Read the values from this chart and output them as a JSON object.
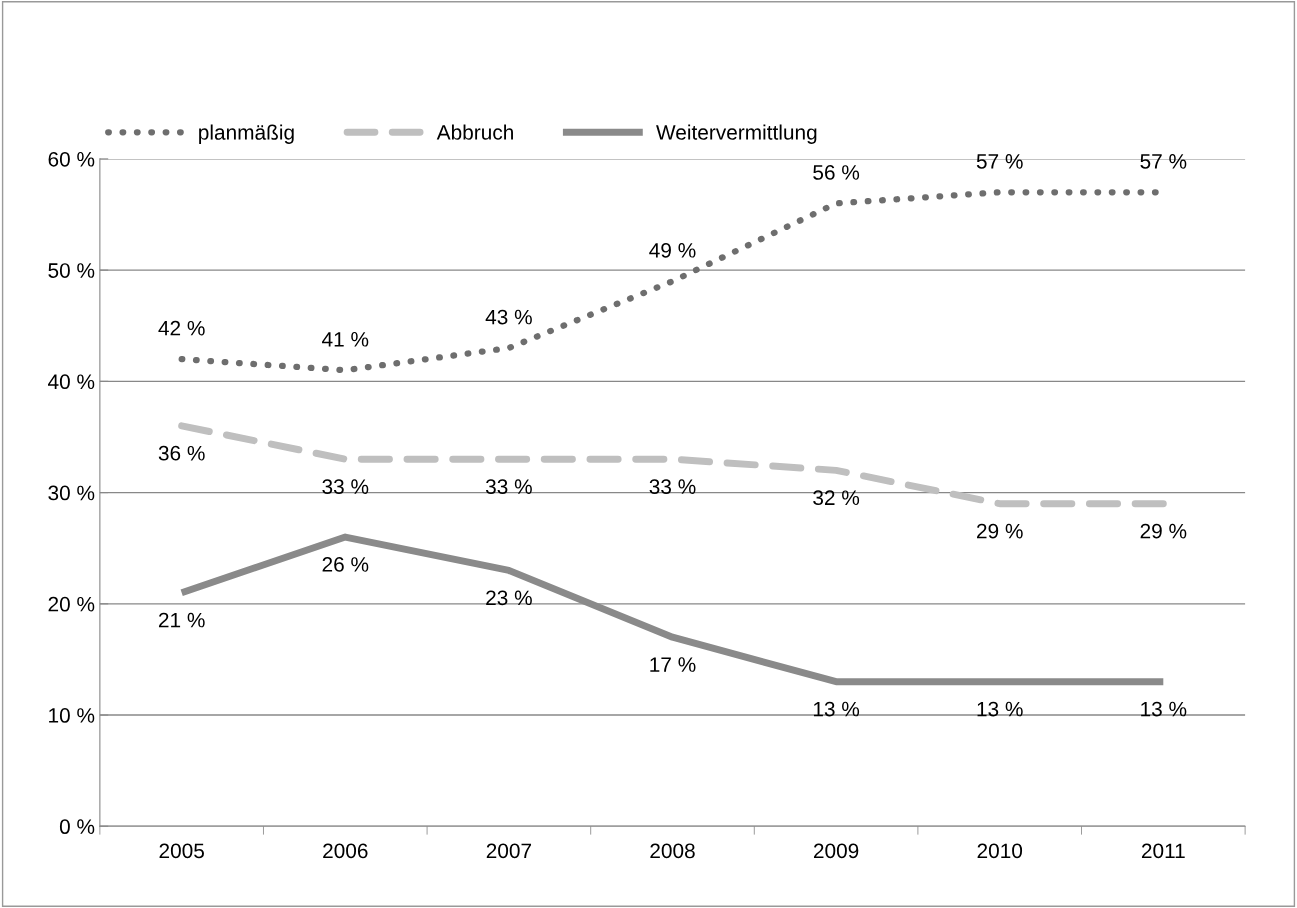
{
  "chart_data": {
    "type": "line",
    "categories": [
      "2005",
      "2006",
      "2007",
      "2008",
      "2009",
      "2010",
      "2011"
    ],
    "series": [
      {
        "name": "planmäßig",
        "color": "#6e6e6e",
        "line_style": "dotted",
        "values": [
          42,
          41,
          43,
          49,
          56,
          57,
          57
        ],
        "value_labels": [
          "42 %",
          "41 %",
          "43 %",
          "49 %",
          "56 %",
          "57 %",
          "57 %"
        ]
      },
      {
        "name": "Abbruch",
        "color": "#bfbfbf",
        "line_style": "dashed",
        "values": [
          36,
          33,
          33,
          33,
          32,
          29,
          29
        ],
        "value_labels": [
          "36 %",
          "33 %",
          "33 %",
          "33 %",
          "32 %",
          "29 %",
          "29 %"
        ]
      },
      {
        "name": "Weitervermittlung",
        "color": "#8a8a8a",
        "line_style": "solid",
        "values": [
          21,
          26,
          23,
          17,
          13,
          13,
          13
        ],
        "value_labels": [
          "21 %",
          "26 %",
          "23 %",
          "17 %",
          "13 %",
          "13 %",
          "13 %"
        ]
      }
    ],
    "ylim": [
      0,
      60
    ],
    "yticks": [
      {
        "value": 0,
        "label": "0 %"
      },
      {
        "value": 10,
        "label": "10 %"
      },
      {
        "value": 20,
        "label": "20 %"
      },
      {
        "value": 30,
        "label": "30 %"
      },
      {
        "value": 40,
        "label": "40 %"
      },
      {
        "value": 50,
        "label": "50 %"
      },
      {
        "value": 60,
        "label": "60 %"
      }
    ],
    "grid": "y",
    "legend": "top left",
    "marker": "none"
  }
}
